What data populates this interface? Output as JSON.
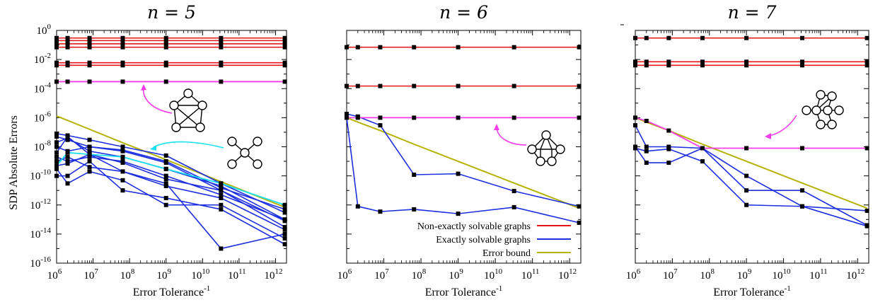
{
  "colors": {
    "non_exact": "#e8141c",
    "exact": "#1e2fe0",
    "bound": "#b5b200",
    "magenta": "#f23ce8",
    "cyan": "#17e0ef",
    "marker": "#000000"
  },
  "icons": [
    "arrow-icon",
    "graph-icon"
  ],
  "chart_data": [
    {
      "type": "line",
      "title": "n = 5",
      "xlabel": "Error Tolerance",
      "xlabel_sup": "-1",
      "ylabel": "SDP Absolute Errors",
      "xscale": "log",
      "yscale": "log",
      "xlim": [
        1000000.0,
        2000000000000.0
      ],
      "ylim": [
        1e-16,
        1
      ],
      "x": [
        1000000.0,
        2000000.0,
        8000000.0,
        65000000.0,
        1000000000.0,
        32000000000.0,
        1800000000000.0
      ],
      "xticks": [
        {
          "v": 1000000.0,
          "b": "10",
          "e": "6"
        },
        {
          "v": 10000000.0,
          "b": "10",
          "e": "7"
        },
        {
          "v": 100000000.0,
          "b": "10",
          "e": "8"
        },
        {
          "v": 1000000000.0,
          "b": "10",
          "e": "9"
        },
        {
          "v": 10000000000.0,
          "b": "10",
          "e": "10"
        },
        {
          "v": 100000000000.0,
          "b": "10",
          "e": "11"
        },
        {
          "v": 1000000000000.0,
          "b": "10",
          "e": "12"
        }
      ],
      "yticks": [
        {
          "v": 1,
          "b": "10",
          "e": "0"
        },
        {
          "v": 0.01,
          "b": "10",
          "e": "-2"
        },
        {
          "v": 0.0001,
          "b": "10",
          "e": "-4"
        },
        {
          "v": 1e-06,
          "b": "10",
          "e": "-6"
        },
        {
          "v": 1e-08,
          "b": "10",
          "e": "-8"
        },
        {
          "v": 1e-10,
          "b": "10",
          "e": "-10"
        },
        {
          "v": 1e-12,
          "b": "10",
          "e": "-12"
        },
        {
          "v": 1e-14,
          "b": "10",
          "e": "-14"
        },
        {
          "v": 1e-16,
          "b": "10",
          "e": "-16"
        }
      ],
      "non_exact": [
        [
          0.3,
          0.3,
          0.3,
          0.3,
          0.3,
          0.3,
          0.3
        ],
        [
          0.2,
          0.2,
          0.2,
          0.2,
          0.2,
          0.2,
          0.2
        ],
        [
          0.12,
          0.12,
          0.12,
          0.12,
          0.12,
          0.12,
          0.12
        ],
        [
          0.07,
          0.07,
          0.07,
          0.07,
          0.07,
          0.07,
          0.07
        ],
        [
          0.006,
          0.006,
          0.006,
          0.006,
          0.006,
          0.006,
          0.006
        ],
        [
          0.004,
          0.004,
          0.004,
          0.004,
          0.004,
          0.004,
          0.004
        ]
      ],
      "highlight": [
        [
          0.0003,
          0.0003,
          0.0003,
          0.0003,
          0.0003,
          0.0003,
          0.0003
        ]
      ],
      "highlight_color": "magenta",
      "exact": [
        [
          8e-08,
          6e-08,
          3e-08,
          1e-08,
          2.5e-09,
          3e-11,
          3e-13
        ],
        [
          5e-08,
          3e-08,
          1e-08,
          6e-09,
          1e-09,
          1.5e-11,
          5e-13
        ],
        [
          2e-08,
          4e-08,
          5e-09,
          2e-09,
          3e-10,
          2e-11,
          1e-13
        ],
        [
          1e-08,
          5e-09,
          1e-08,
          5e-09,
          8e-10,
          1e-11,
          8e-14
        ],
        [
          4e-09,
          5e-08,
          3e-09,
          8e-10,
          6e-11,
          1e-11,
          3e-14
        ],
        [
          2e-09,
          1e-09,
          2e-09,
          1e-09,
          1e-10,
          5e-12,
          1e-13
        ],
        [
          1e-09,
          2e-09,
          4e-10,
          2e-10,
          2e-11,
          3e-12,
          2e-14
        ],
        [
          3e-10,
          3e-11,
          2e-10,
          5e-11,
          1e-12,
          1e-12,
          5e-15
        ],
        [
          5e-10,
          7e-10,
          3e-09,
          2e-10,
          3e-11,
          1e-15,
          1e-14
        ],
        [
          1e-10,
          1e-10,
          1e-09,
          1e-11,
          3e-12,
          5e-13,
          2e-15
        ]
      ],
      "cyan_series": [
        [
          5e-10,
          4e-09,
          3e-09,
          2e-09,
          3e-10,
          3e-11,
          1e-12
        ]
      ],
      "bound": [
        1.3e-06,
        6.5e-07,
        1.6e-07,
        1.9e-08,
        1.3e-09,
        4e-11,
        7e-13
      ],
      "cyan_arrow": true
    },
    {
      "type": "line",
      "title": "n = 6",
      "xlabel": "Error Tolerance",
      "xlabel_sup": "-1",
      "ylabel": "",
      "xscale": "log",
      "yscale": "log",
      "xlim": [
        1000000.0,
        2000000000000.0
      ],
      "ylim": [
        1e-16,
        1
      ],
      "x": [
        1000000.0,
        2000000.0,
        8000000.0,
        65000000.0,
        1000000000.0,
        32000000000.0,
        1800000000000.0
      ],
      "xticks": [
        {
          "v": 1000000.0,
          "b": "10",
          "e": "6"
        },
        {
          "v": 10000000.0,
          "b": "10",
          "e": "7"
        },
        {
          "v": 100000000.0,
          "b": "10",
          "e": "8"
        },
        {
          "v": 1000000000.0,
          "b": "10",
          "e": "9"
        },
        {
          "v": 10000000000.0,
          "b": "10",
          "e": "10"
        },
        {
          "v": 100000000000.0,
          "b": "10",
          "e": "11"
        },
        {
          "v": 1000000000000.0,
          "b": "10",
          "e": "12"
        }
      ],
      "yticks": [],
      "non_exact": [
        [
          0.07,
          0.07,
          0.07,
          0.07,
          0.07,
          0.07,
          0.07
        ],
        [
          0.00015,
          0.00015,
          0.00015,
          0.00015,
          0.00015,
          0.00015,
          0.00015
        ]
      ],
      "highlight": [
        [
          1e-06,
          1e-06,
          1e-06,
          1e-06,
          1e-06,
          1e-06,
          1e-06
        ]
      ],
      "highlight_color": "magenta",
      "exact": [
        [
          1.8e-06,
          1.2e-06,
          3e-07,
          1.2e-10,
          1.4e-10,
          9e-12,
          8e-13
        ],
        [
          1e-06,
          8e-13,
          3.5e-13,
          5e-13,
          2.5e-13,
          7e-13,
          6e-14
        ]
      ],
      "cyan_series": [],
      "bound": [
        1e-06,
        5e-07,
        1.3e-07,
        1.5e-08,
        1e-09,
        3.2e-11,
        6e-13
      ],
      "cyan_arrow": false,
      "legend": {
        "position": "bottom-right",
        "entries": [
          {
            "label": "Non-exactly solvable graphs",
            "color": "non_exact"
          },
          {
            "label": "Exactly solvable graphs",
            "color": "exact"
          },
          {
            "label": "Error bound",
            "color": "bound"
          }
        ]
      }
    },
    {
      "type": "line",
      "title": "n = 7",
      "xlabel": "Error Tolerance",
      "xlabel_sup": "-1",
      "ylabel": "",
      "xscale": "log",
      "yscale": "log",
      "xlim": [
        1000000.0,
        2000000000000.0
      ],
      "ylim": [
        1e-16,
        1
      ],
      "x": [
        1000000.0,
        2000000.0,
        8000000.0,
        65000000.0,
        1000000000.0,
        32000000000.0,
        1800000000000.0
      ],
      "xticks": [
        {
          "v": 1000000.0,
          "b": "10",
          "e": "6"
        },
        {
          "v": 10000000.0,
          "b": "10",
          "e": "7"
        },
        {
          "v": 100000000.0,
          "b": "10",
          "e": "8"
        },
        {
          "v": 1000000000.0,
          "b": "10",
          "e": "9"
        },
        {
          "v": 10000000000.0,
          "b": "10",
          "e": "10"
        },
        {
          "v": 100000000000.0,
          "b": "10",
          "e": "11"
        },
        {
          "v": 1000000000000.0,
          "b": "10",
          "e": "12"
        }
      ],
      "yticks": [],
      "non_exact": [
        [
          0.3,
          0.3,
          0.3,
          0.3,
          0.3,
          0.3,
          0.3
        ],
        [
          0.007,
          0.007,
          0.007,
          0.007,
          0.007,
          0.007,
          0.007
        ],
        [
          0.004,
          0.004,
          0.004,
          0.004,
          0.004,
          0.004,
          0.004
        ]
      ],
      "highlight": [
        [
          1e-06,
          6e-07,
          1.3e-07,
          8e-09,
          8e-09,
          8e-09,
          8e-09
        ]
      ],
      "highlight_color": "magenta",
      "exact": [
        [
          3e-07,
          1e-08,
          1e-08,
          8e-09,
          1e-10,
          8e-13,
          4e-13
        ],
        [
          1e-08,
          8e-10,
          8e-10,
          8e-09,
          1e-11,
          1e-11,
          4e-14
        ],
        [
          8e-09,
          5e-09,
          7e-09,
          1e-09,
          1e-12,
          8e-13,
          3.5e-14
        ]
      ],
      "cyan_series": [],
      "bound": [
        1e-06,
        5e-07,
        1.3e-07,
        1.5e-08,
        1e-09,
        3.2e-11,
        6e-13
      ],
      "cyan_arrow": false
    }
  ]
}
